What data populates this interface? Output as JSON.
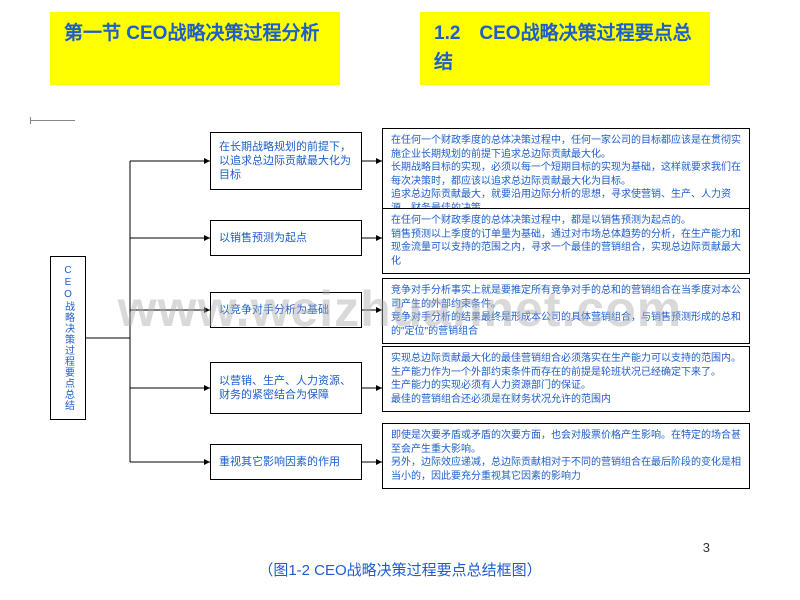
{
  "header": {
    "left": "第一节 CEO战略决策过程分析",
    "right": "1.2　CEO战略决策过程要点总结"
  },
  "root": {
    "label": "CEO战略决策过程要点总结"
  },
  "branches": [
    {
      "mid": "在长期战略规划的前提下，以追求总边际贡献最大化为目标",
      "detail": "在任何一个财政季度的总体决策过程中，任何一家公司的目标都应该是在贯彻实施企业长期规划的前提下追求总边际贡献最大化。\n长期战略目标的实现，必须以每一个短期目标的实现为基础，这样就要求我们在每次决策时，都应该以追求总边际贡献最大化为目标。\n追求总边际贡献最大，就要沿用边际分析的思想，寻求使营销、生产、人力资源、财务最佳的决策",
      "midTop": 4,
      "midH": 58,
      "detailTop": 0,
      "detailH": 72
    },
    {
      "mid": "以销售预测为起点",
      "detail": "在任何一个财政季度的总体决策过程中，都是以销售预测为起点的。\n销售预测以上季度的订单量为基础，通过对市场总体趋势的分析，在生产能力和现金流量可以支持的范围之内，寻求一个最佳的营销组合，实现总边际贡献最大化",
      "midTop": 92,
      "midH": 36,
      "detailTop": 80,
      "detailH": 60
    },
    {
      "mid": "以竞争对手分析为基础",
      "detail": "竞争对手分析事实上就是要推定所有竞争对手的总和的营销组合在当季度对本公司产生的外部约束条件。\n竞争对手分析的结果最终是形成本公司的具体营销组合，与销售预测形成的总和的\"定位\"的营销组合",
      "midTop": 164,
      "midH": 36,
      "detailTop": 150,
      "detailH": 58
    },
    {
      "mid": "以营销、生产、人力资源、财务的紧密结合为保障",
      "detail": "实现总边际贡献最大化的最佳营销组合必须落实在生产能力可以支持的范围内。生产能力作为一个外部约束条件而存在的前提是轮班状况已经确定下来了。\n生产能力的实现必须有人力资源部门的保证。\n最佳的营销组合还必须是在财务状况允许的范围内",
      "midTop": 234,
      "midH": 52,
      "detailTop": 218,
      "detailH": 62
    },
    {
      "mid": "重视其它影响因素的作用",
      "detail": "即使是次要矛盾或矛盾的次要方面，也会对股票价格产生影响。在特定的场合甚至会产生重大影响。\n另外，边际效应递减，总边际贡献相对于不同的营销组合在最后阶段的变化是相当小的，因此要充分重视其它因素的影响力",
      "midTop": 316,
      "midH": 36,
      "detailTop": 295,
      "detailH": 62
    }
  ],
  "caption": "（图1-2 CEO战略决策过程要点总结框图）",
  "pageNumber": "3",
  "watermark": "www.weizhuannet.com",
  "colors": {
    "highlight": "#ffff00",
    "text": "#1d5ecb",
    "border": "#000000",
    "background": "#ffffff"
  }
}
